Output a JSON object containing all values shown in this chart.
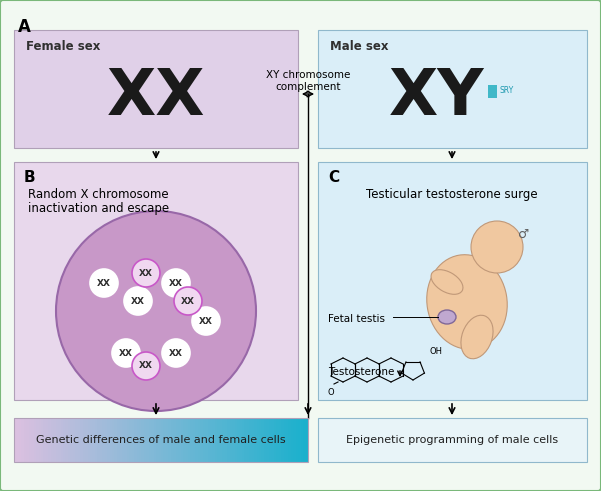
{
  "bg_color": "#f2f9f2",
  "border_color": "#7ab87a",
  "panel_a_label": "A",
  "panel_b_label": "B",
  "panel_c_label": "C",
  "female_box_color": "#e0d0e8",
  "male_box_color": "#daeef8",
  "female_label": "Female sex",
  "male_label": "Male sex",
  "female_chromosome": "XX",
  "male_chromosome": "XY",
  "sry_label": "SRY",
  "arrow_label_line1": "XY chromosome",
  "arrow_label_line2": "complement",
  "panel_b_bg": "#e8d8ec",
  "panel_b_text_line1": "Random X chromosome",
  "panel_b_text_line2": "inactivation and escape",
  "nucleus_fill": "#c898c8",
  "nucleus_edge": "#9868a8",
  "panel_c_bg": "#daeef8",
  "panel_c_text": "Testicular testosterone surge",
  "fetal_testis_label": "Fetal testis",
  "testosterone_label": "Testosterone",
  "bottom_left_text": "Genetic differences of male and female cells",
  "bottom_right_text": "Epigenetic programming of male cells",
  "bottom_grad_left": "#dcc0e0",
  "bottom_grad_right": "#18b0cc",
  "bottom_right_fill": "#e8f4f8",
  "sry_rect_color": "#40b8c8",
  "white_circle_edge": "#ffffff",
  "white_circle_fill": "#ffffff",
  "pink_circle_edge": "#c858c8",
  "pink_circle_fill": "#f0d8f0",
  "xx_text_color": "#303030",
  "fetus_body_fill": "#f0c8a0",
  "fetus_body_edge": "#c09878",
  "testis_fill": "#c0a8d0",
  "testis_edge": "#806898"
}
